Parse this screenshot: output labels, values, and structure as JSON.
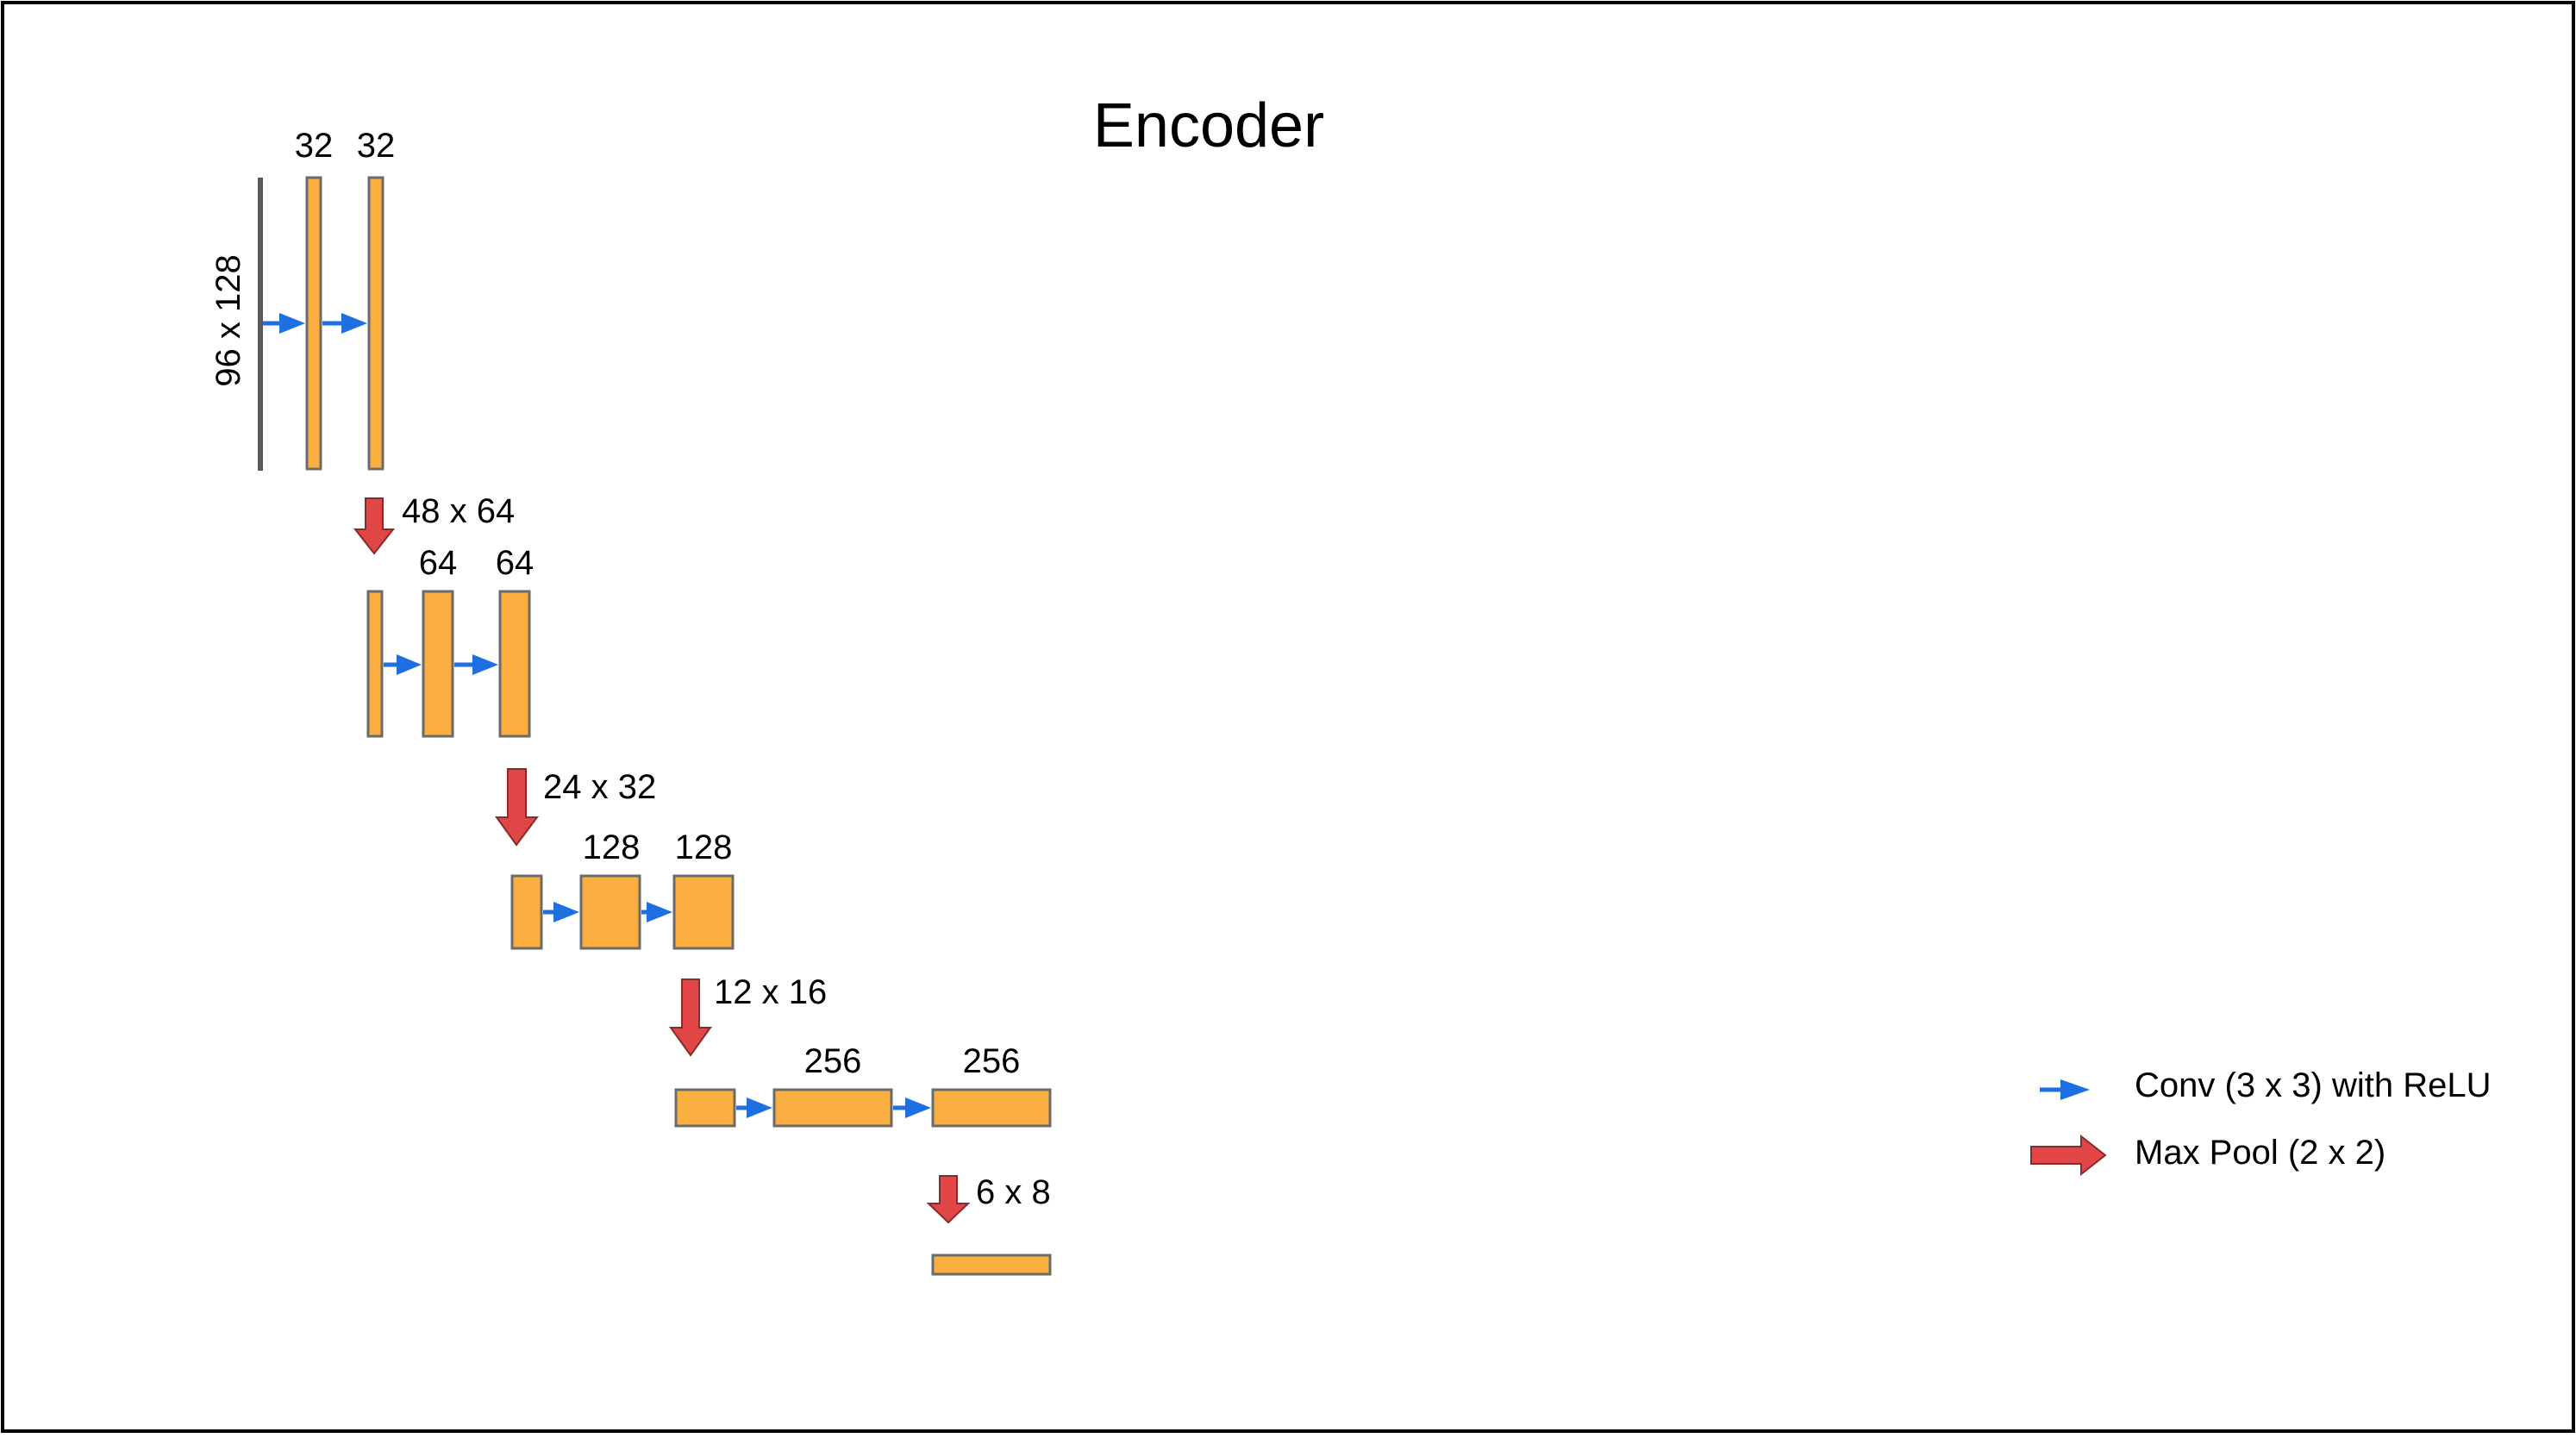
{
  "title": "Encoder",
  "colors": {
    "feature_map_fill": "#FBAE40",
    "feature_map_stroke": "#6B6B6B",
    "conv_arrow": "#1E6FE0",
    "pool_arrow": "#E04646",
    "input_line": "#5A5A5A",
    "frame": "#000000"
  },
  "input": {
    "size_label": "96 x 128"
  },
  "stages": [
    {
      "channel_labels": [
        "32",
        "32"
      ]
    },
    {
      "size_label": "48 x 64",
      "channel_labels": [
        "64",
        "64"
      ]
    },
    {
      "size_label": "24 x 32",
      "channel_labels": [
        "128",
        "128"
      ]
    },
    {
      "size_label": "12 x 16",
      "channel_labels": [
        "256",
        "256"
      ]
    },
    {
      "size_label": "6 x 8"
    }
  ],
  "legend": {
    "conv": {
      "icon": "blue-arrow",
      "label": "Conv (3 x 3) with ReLU"
    },
    "pool": {
      "icon": "red-arrow",
      "label": "Max Pool (2 x 2)"
    }
  }
}
